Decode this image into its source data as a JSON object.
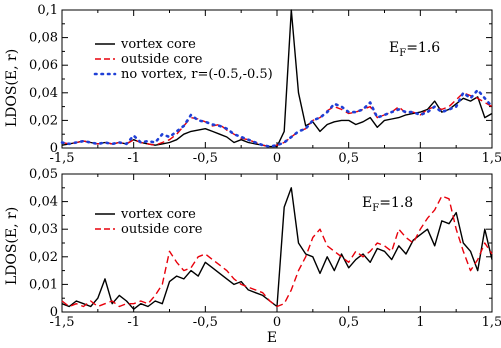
{
  "chart_data": [
    {
      "type": "line",
      "xlim": [
        -1.5,
        1.5
      ],
      "ylim": [
        0,
        0.1
      ],
      "x_ticks": [
        "-1,5",
        "-1",
        "-0,5",
        "0",
        "0,5",
        "1",
        "1,5"
      ],
      "y_ticks": [
        "0",
        "0,02",
        "0,04",
        "0,06",
        "0,08",
        "0,1"
      ],
      "ylabel": "LDOS(E, r)",
      "xlabel": "",
      "annotation": {
        "text": "E",
        "sub": "F",
        "rest": "=1.6"
      },
      "legend_position": "top-left",
      "series": [
        {
          "name": "vortex core",
          "color": "#000000",
          "style": "solid",
          "x": [
            -1.5,
            -1.45,
            -1.4,
            -1.35,
            -1.3,
            -1.25,
            -1.2,
            -1.15,
            -1.1,
            -1.05,
            -1.0,
            -0.95,
            -0.9,
            -0.85,
            -0.8,
            -0.75,
            -0.7,
            -0.65,
            -0.6,
            -0.55,
            -0.5,
            -0.45,
            -0.4,
            -0.35,
            -0.3,
            -0.25,
            -0.2,
            -0.15,
            -0.1,
            -0.05,
            0.0,
            0.05,
            0.1,
            0.15,
            0.2,
            0.25,
            0.3,
            0.35,
            0.4,
            0.45,
            0.5,
            0.55,
            0.6,
            0.65,
            0.7,
            0.75,
            0.8,
            0.85,
            0.9,
            0.95,
            1.0,
            1.05,
            1.1,
            1.15,
            1.2,
            1.25,
            1.3,
            1.35,
            1.4,
            1.45,
            1.5
          ],
          "y": [
            0.002,
            0.003,
            0.004,
            0.005,
            0.004,
            0.003,
            0.004,
            0.003,
            0.004,
            0.003,
            0.006,
            0.004,
            0.003,
            0.002,
            0.003,
            0.004,
            0.006,
            0.01,
            0.012,
            0.013,
            0.014,
            0.012,
            0.01,
            0.008,
            0.004,
            0.006,
            0.004,
            0.003,
            0.002,
            0.001,
            0.001,
            0.012,
            0.1,
            0.04,
            0.016,
            0.019,
            0.012,
            0.017,
            0.019,
            0.02,
            0.02,
            0.017,
            0.019,
            0.022,
            0.015,
            0.02,
            0.021,
            0.022,
            0.024,
            0.025,
            0.026,
            0.028,
            0.034,
            0.026,
            0.028,
            0.032,
            0.036,
            0.034,
            0.037,
            0.022,
            0.025
          ]
        },
        {
          "name": "outside core",
          "color": "#e8000b",
          "style": "dashed",
          "x": [
            -1.5,
            -1.45,
            -1.4,
            -1.35,
            -1.3,
            -1.25,
            -1.2,
            -1.15,
            -1.1,
            -1.05,
            -1.0,
            -0.95,
            -0.9,
            -0.85,
            -0.8,
            -0.75,
            -0.7,
            -0.65,
            -0.6,
            -0.55,
            -0.5,
            -0.45,
            -0.4,
            -0.35,
            -0.3,
            -0.25,
            -0.2,
            -0.15,
            -0.1,
            -0.05,
            0.0,
            0.05,
            0.1,
            0.15,
            0.2,
            0.25,
            0.3,
            0.35,
            0.4,
            0.45,
            0.5,
            0.55,
            0.6,
            0.65,
            0.7,
            0.75,
            0.8,
            0.85,
            0.9,
            0.95,
            1.0,
            1.05,
            1.1,
            1.15,
            1.2,
            1.25,
            1.3,
            1.35,
            1.4,
            1.45,
            1.5
          ],
          "y": [
            0.004,
            0.003,
            0.004,
            0.005,
            0.004,
            0.003,
            0.004,
            0.003,
            0.004,
            0.003,
            0.006,
            0.004,
            0.003,
            0.002,
            0.004,
            0.006,
            0.01,
            0.016,
            0.022,
            0.021,
            0.019,
            0.016,
            0.017,
            0.013,
            0.01,
            0.007,
            0.006,
            0.004,
            0.002,
            0.001,
            0.002,
            0.004,
            0.008,
            0.012,
            0.014,
            0.02,
            0.022,
            0.027,
            0.03,
            0.028,
            0.025,
            0.026,
            0.028,
            0.03,
            0.022,
            0.024,
            0.026,
            0.03,
            0.025,
            0.026,
            0.024,
            0.028,
            0.03,
            0.028,
            0.03,
            0.035,
            0.04,
            0.038,
            0.036,
            0.033,
            0.03
          ]
        },
        {
          "name": "no vortex, r=(-0.5,-0.5)",
          "color": "#1f3fd6",
          "style": "dotted",
          "x": [
            -1.5,
            -1.45,
            -1.4,
            -1.35,
            -1.3,
            -1.25,
            -1.2,
            -1.15,
            -1.1,
            -1.05,
            -1.0,
            -0.95,
            -0.9,
            -0.85,
            -0.8,
            -0.75,
            -0.7,
            -0.65,
            -0.6,
            -0.55,
            -0.5,
            -0.45,
            -0.4,
            -0.35,
            -0.3,
            -0.25,
            -0.2,
            -0.15,
            -0.1,
            -0.05,
            0.0,
            0.05,
            0.1,
            0.15,
            0.2,
            0.25,
            0.3,
            0.35,
            0.4,
            0.45,
            0.5,
            0.55,
            0.6,
            0.65,
            0.7,
            0.75,
            0.8,
            0.85,
            0.9,
            0.95,
            1.0,
            1.05,
            1.1,
            1.15,
            1.2,
            1.25,
            1.3,
            1.35,
            1.4,
            1.45,
            1.5
          ],
          "y": [
            0.004,
            0.003,
            0.004,
            0.005,
            0.004,
            0.003,
            0.004,
            0.003,
            0.004,
            0.003,
            0.009,
            0.004,
            0.005,
            0.004,
            0.01,
            0.008,
            0.012,
            0.016,
            0.024,
            0.02,
            0.019,
            0.017,
            0.016,
            0.014,
            0.01,
            0.008,
            0.006,
            0.004,
            0.002,
            0.001,
            0.002,
            0.004,
            0.008,
            0.012,
            0.014,
            0.02,
            0.022,
            0.026,
            0.032,
            0.03,
            0.026,
            0.026,
            0.028,
            0.033,
            0.022,
            0.024,
            0.026,
            0.028,
            0.026,
            0.026,
            0.024,
            0.026,
            0.03,
            0.026,
            0.028,
            0.03,
            0.04,
            0.036,
            0.042,
            0.036,
            0.03
          ]
        }
      ]
    },
    {
      "type": "line",
      "xlim": [
        -1.5,
        1.5
      ],
      "ylim": [
        0,
        0.05
      ],
      "x_ticks": [
        "-1,5",
        "-1",
        "-0,5",
        "0",
        "0,5",
        "1",
        "1,5"
      ],
      "y_ticks": [
        "0",
        "0,01",
        "0,02",
        "0,03",
        "0,04",
        "0,05"
      ],
      "ylabel": "LDOS(E, r)",
      "xlabel": "E",
      "annotation": {
        "text": "E",
        "sub": "F",
        "rest": "=1.8"
      },
      "legend_position": "top-left",
      "series": [
        {
          "name": "vortex core",
          "color": "#000000",
          "style": "solid",
          "x": [
            -1.5,
            -1.45,
            -1.4,
            -1.35,
            -1.3,
            -1.25,
            -1.2,
            -1.15,
            -1.1,
            -1.05,
            -1.0,
            -0.95,
            -0.9,
            -0.85,
            -0.8,
            -0.75,
            -0.7,
            -0.65,
            -0.6,
            -0.55,
            -0.5,
            -0.45,
            -0.4,
            -0.35,
            -0.3,
            -0.25,
            -0.2,
            -0.15,
            -0.1,
            -0.05,
            0.0,
            0.05,
            0.1,
            0.15,
            0.2,
            0.25,
            0.3,
            0.35,
            0.4,
            0.45,
            0.5,
            0.55,
            0.6,
            0.65,
            0.7,
            0.75,
            0.8,
            0.85,
            0.9,
            0.95,
            1.0,
            1.05,
            1.1,
            1.15,
            1.2,
            1.25,
            1.3,
            1.35,
            1.4,
            1.45,
            1.5
          ],
          "y": [
            0.003,
            0.002,
            0.004,
            0.003,
            0.002,
            0.005,
            0.012,
            0.003,
            0.006,
            0.004,
            0.001,
            0.003,
            0.002,
            0.004,
            0.003,
            0.011,
            0.013,
            0.012,
            0.015,
            0.013,
            0.018,
            0.016,
            0.014,
            0.012,
            0.01,
            0.011,
            0.008,
            0.007,
            0.006,
            0.004,
            0.002,
            0.038,
            0.045,
            0.025,
            0.021,
            0.02,
            0.014,
            0.02,
            0.015,
            0.021,
            0.016,
            0.019,
            0.021,
            0.018,
            0.023,
            0.022,
            0.019,
            0.024,
            0.021,
            0.026,
            0.028,
            0.03,
            0.024,
            0.033,
            0.032,
            0.036,
            0.025,
            0.022,
            0.015,
            0.03,
            0.019
          ]
        },
        {
          "name": "outside core",
          "color": "#e8000b",
          "style": "dashed",
          "x": [
            -1.5,
            -1.45,
            -1.4,
            -1.35,
            -1.3,
            -1.25,
            -1.2,
            -1.15,
            -1.1,
            -1.05,
            -1.0,
            -0.95,
            -0.9,
            -0.85,
            -0.8,
            -0.75,
            -0.7,
            -0.65,
            -0.6,
            -0.55,
            -0.5,
            -0.45,
            -0.4,
            -0.35,
            -0.3,
            -0.25,
            -0.2,
            -0.15,
            -0.1,
            -0.05,
            0.0,
            0.05,
            0.1,
            0.15,
            0.2,
            0.25,
            0.3,
            0.35,
            0.4,
            0.45,
            0.5,
            0.55,
            0.6,
            0.65,
            0.7,
            0.75,
            0.8,
            0.85,
            0.9,
            0.95,
            1.0,
            1.05,
            1.1,
            1.15,
            1.2,
            1.25,
            1.3,
            1.35,
            1.4,
            1.45,
            1.5
          ],
          "y": [
            0.004,
            0.002,
            0.003,
            0.002,
            0.004,
            0.002,
            0.003,
            0.004,
            0.002,
            0.003,
            0.003,
            0.004,
            0.003,
            0.006,
            0.01,
            0.022,
            0.018,
            0.015,
            0.016,
            0.02,
            0.021,
            0.019,
            0.017,
            0.015,
            0.012,
            0.01,
            0.009,
            0.008,
            0.007,
            0.004,
            0.002,
            0.003,
            0.008,
            0.015,
            0.02,
            0.027,
            0.03,
            0.024,
            0.022,
            0.02,
            0.018,
            0.022,
            0.02,
            0.022,
            0.025,
            0.024,
            0.022,
            0.03,
            0.027,
            0.025,
            0.03,
            0.034,
            0.037,
            0.042,
            0.041,
            0.03,
            0.022,
            0.015,
            0.019,
            0.025,
            0.021
          ]
        }
      ]
    }
  ]
}
